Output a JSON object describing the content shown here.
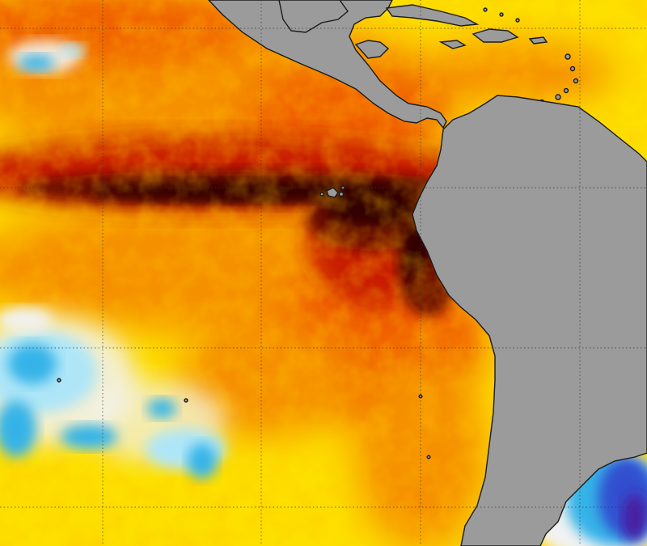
{
  "map": {
    "type": "sea-surface-temperature-anomaly",
    "land_color": "#9b9b9b",
    "coastline_color": "#1a1a1a",
    "gridline_color": "#333333",
    "gridlines": "dotted",
    "palette": {
      "deep_warm": "#330000",
      "very_warm": "#6b0a00",
      "warm_red": "#c81e00",
      "warm_orange": "#f06000",
      "orange": "#f59000",
      "yellow_orange": "#f8b800",
      "yellow": "#fde000",
      "neutral": "#f2f2f2",
      "cool_light": "#aee6f8",
      "cool": "#34b3e8",
      "cold": "#3050d0",
      "very_cold": "#4a1fa0"
    },
    "features": [
      "equatorial-warm-tongue",
      "galapagos-islands",
      "central-america",
      "caribbean-islands",
      "south-america",
      "cool-anomaly-southwest",
      "cold-anomaly-southeast"
    ]
  }
}
